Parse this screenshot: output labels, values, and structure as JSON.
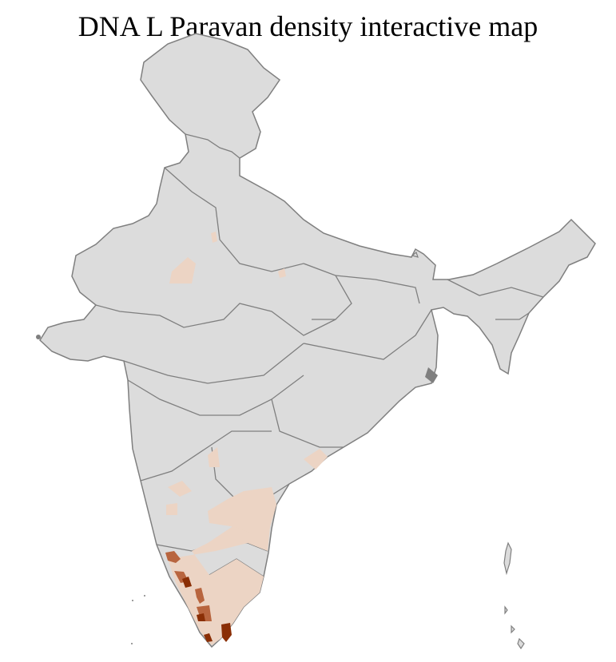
{
  "title": "DNA L Paravan density interactive map",
  "colors": {
    "no_data": "#dcdcdc",
    "low": "#ecd4c4",
    "medium": "#b8653f",
    "high": "#8a2e05",
    "state_border": "#7f7f7f",
    "district_border": "#ffffff"
  },
  "map": {
    "regions_shaded": [
      {
        "region": "kerala-coast",
        "level": "high"
      },
      {
        "region": "kanyakumari-tirunelveli",
        "level": "high"
      },
      {
        "region": "kerala-central",
        "level": "medium"
      },
      {
        "region": "tamil-nadu",
        "level": "low"
      },
      {
        "region": "south-andhra",
        "level": "low"
      },
      {
        "region": "karnataka-patches",
        "level": "low"
      },
      {
        "region": "odisha-south",
        "level": "low"
      },
      {
        "region": "rajasthan-patch",
        "level": "low"
      },
      {
        "region": "uttar-pradesh-patch",
        "level": "low"
      }
    ]
  }
}
